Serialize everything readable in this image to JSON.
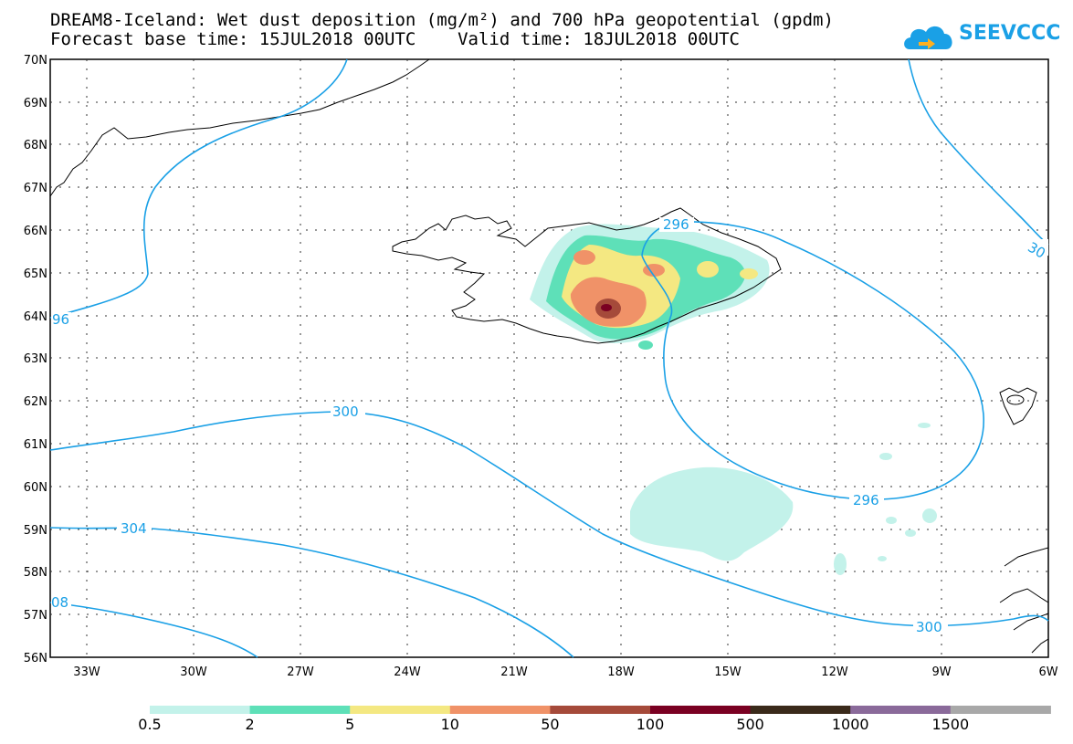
{
  "title_line1": "DREAM8-Iceland: Wet dust deposition (mg/m²) and 700 hPa geopotential (gpdm)",
  "title_line2": "Forecast base time: 15JUL2018 00UTC    Valid time: 18JUL2018 00UTC",
  "logo_text": "SEEVCCC",
  "lat_labels": [
    "70N",
    "69N",
    "68N",
    "67N",
    "66N",
    "65N",
    "64N",
    "63N",
    "62N",
    "61N",
    "60N",
    "59N",
    "58N",
    "57N",
    "56N"
  ],
  "lon_labels": [
    "33W",
    "30W",
    "27W",
    "24W",
    "21W",
    "18W",
    "15W",
    "12W",
    "9W",
    "6W"
  ],
  "contour_labels": {
    "c296_top": "296",
    "c296_bottom": "296",
    "c96_left": "96",
    "c30_right": "30",
    "c300_mid": "300",
    "c300_bottom": "300",
    "c304": "304",
    "c08_left": "08"
  },
  "legend": {
    "labels": [
      "0.5",
      "2",
      "5",
      "10",
      "50",
      "100",
      "500",
      "1000",
      "1500"
    ],
    "colors": [
      "#c3f2ea",
      "#5ee0b8",
      "#f4e882",
      "#f09268",
      "#a54a3a",
      "#7a0022",
      "#3a2a1a",
      "#8a6a9a",
      "#a8a8a8"
    ]
  },
  "colors": {
    "contour": "#1aa0e6",
    "coast": "#000000"
  }
}
